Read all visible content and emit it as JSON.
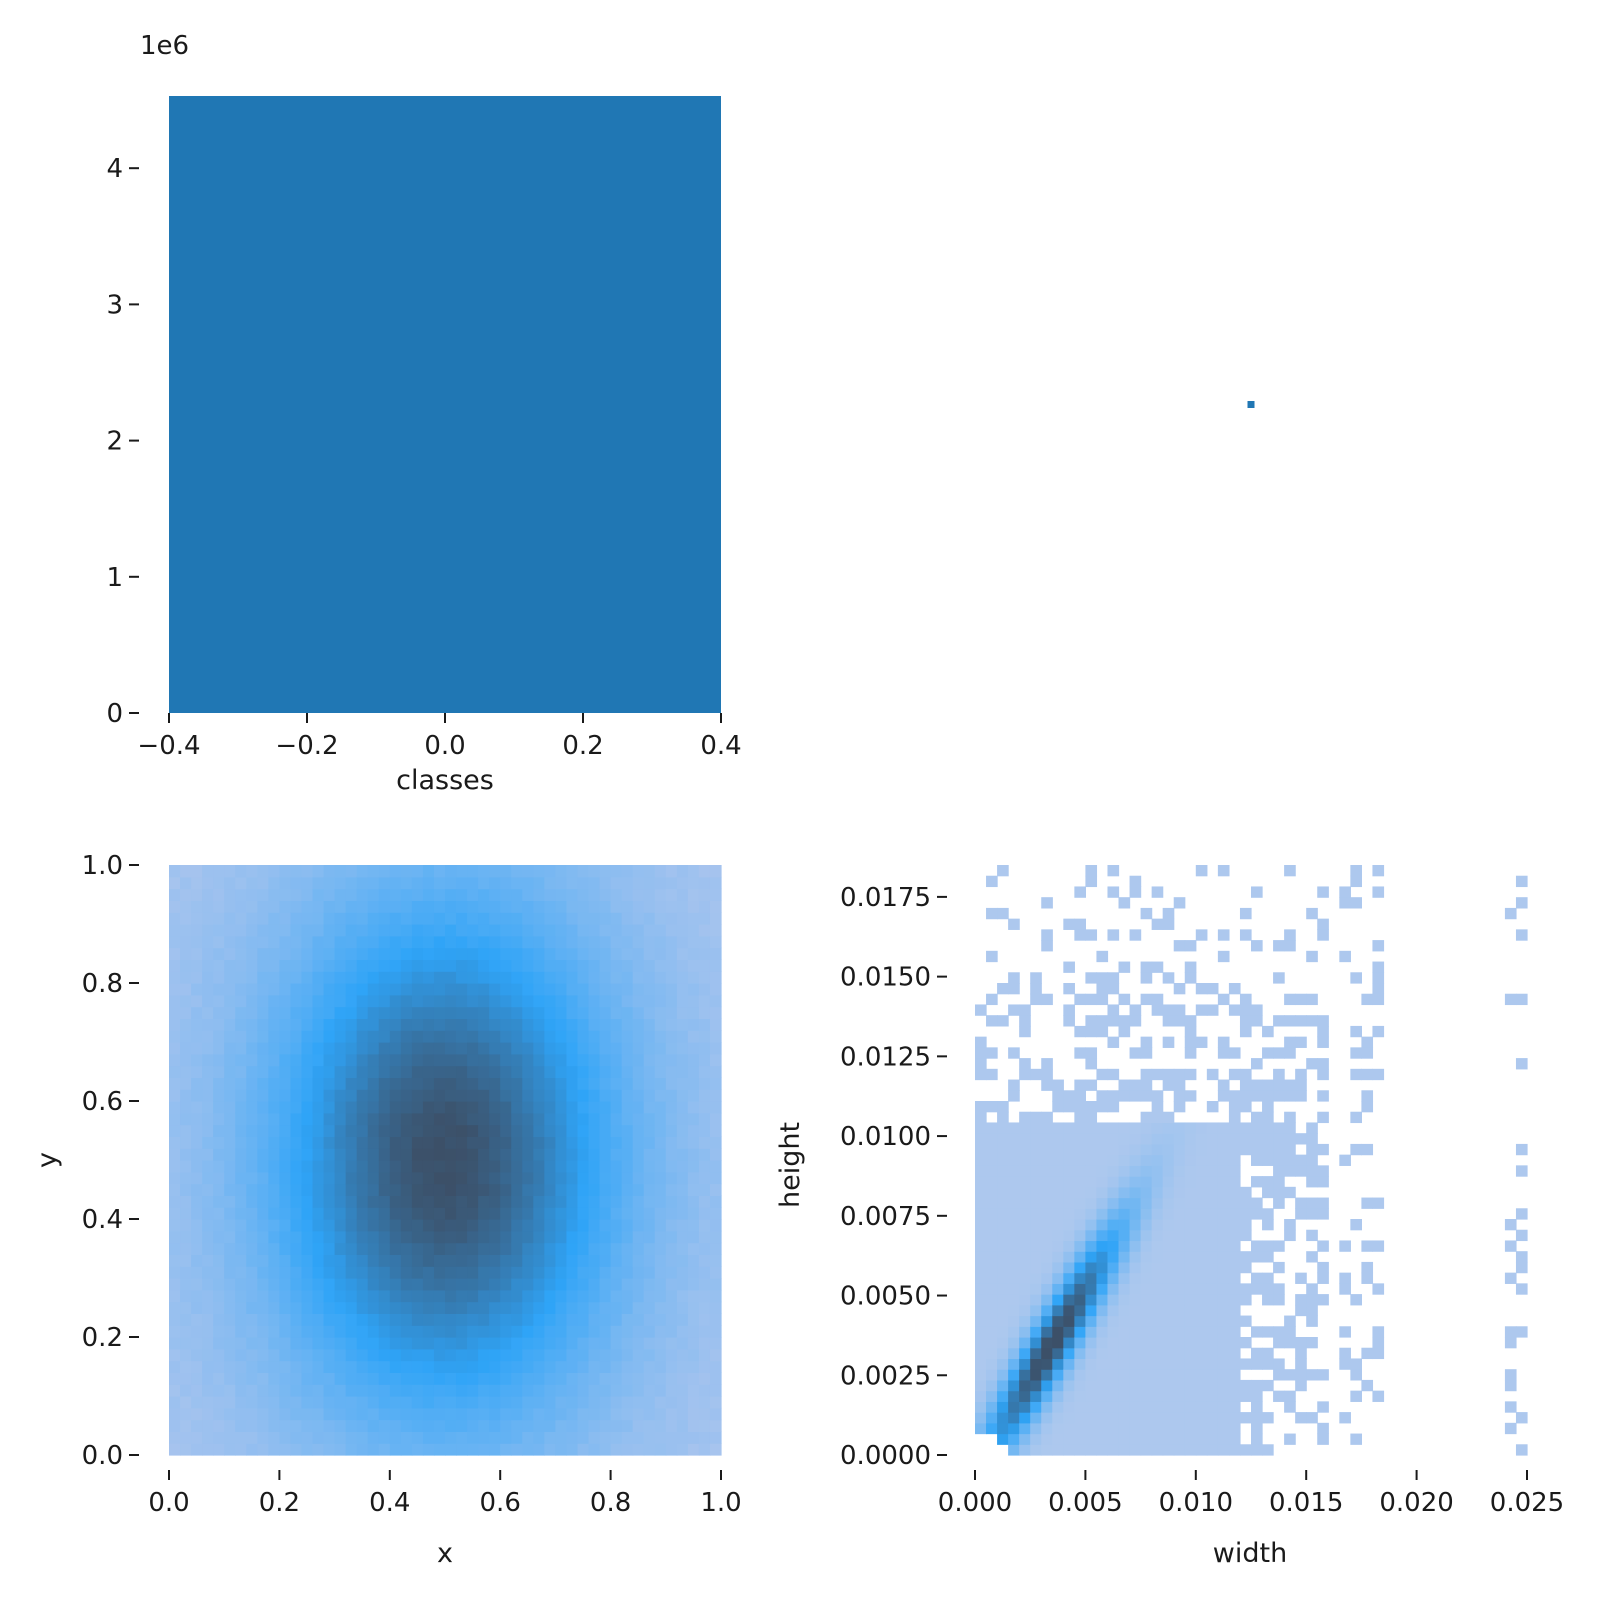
{
  "chart_data": [
    {
      "type": "bar",
      "panel": "top-left",
      "xlabel": "classes",
      "ylabel": "",
      "y_offset_label": "1e6",
      "xlim": [
        -0.4,
        0.4
      ],
      "ylim": [
        0,
        4.53
      ],
      "xticks": [
        "−0.4",
        "−0.2",
        "0.0",
        "0.2",
        "0.4"
      ],
      "xtick_values": [
        -0.4,
        -0.2,
        0.0,
        0.2,
        0.4
      ],
      "yticks": [
        "0",
        "1",
        "2",
        "3",
        "4"
      ],
      "ytick_values": [
        0,
        1,
        2,
        3,
        4
      ],
      "categories": [
        0
      ],
      "values": [
        4.53
      ],
      "bar_range": [
        -0.4,
        0.4
      ],
      "color": "#2077b4"
    },
    {
      "type": "scatter",
      "panel": "top-right",
      "xlabel": "",
      "ylabel": "",
      "points": [
        {
          "x": 0.5,
          "y": 0.5
        }
      ],
      "color": "#2077b4"
    },
    {
      "type": "heatmap",
      "panel": "bottom-left",
      "xlabel": "x",
      "ylabel": "y",
      "xlim": [
        0,
        1
      ],
      "ylim": [
        0,
        1
      ],
      "xticks": [
        "0.0",
        "0.2",
        "0.4",
        "0.6",
        "0.8",
        "1.0"
      ],
      "xtick_values": [
        0,
        0.2,
        0.4,
        0.6,
        0.8,
        1.0
      ],
      "yticks": [
        "0.0",
        "0.2",
        "0.4",
        "0.6",
        "0.8",
        "1.0"
      ],
      "ytick_values": [
        0,
        0.2,
        0.4,
        0.6,
        0.8,
        1.0
      ],
      "bins": 50,
      "peak": {
        "x": 0.5,
        "y": 0.5,
        "sx": 0.2,
        "sy": 0.28
      },
      "colormap": [
        "#a8c4ee",
        "#2fa4f7",
        "#3c5068"
      ]
    },
    {
      "type": "heatmap",
      "panel": "bottom-right",
      "xlabel": "width",
      "ylabel": "height",
      "xlim": [
        0,
        0.025
      ],
      "ylim": [
        0,
        0.0185
      ],
      "xticks": [
        "0.000",
        "0.005",
        "0.010",
        "0.015",
        "0.020",
        "0.025"
      ],
      "xtick_values": [
        0,
        0.005,
        0.01,
        0.015,
        0.02,
        0.025
      ],
      "yticks": [
        "0.0000",
        "0.0025",
        "0.0050",
        "0.0075",
        "0.0100",
        "0.0125",
        "0.0150",
        "0.0175"
      ],
      "ytick_values": [
        0,
        0.0025,
        0.005,
        0.0075,
        0.01,
        0.0125,
        0.015,
        0.0175
      ],
      "bins_x": 50,
      "bins_y": 55,
      "dense_region": {
        "width_max": 0.0121,
        "height_max": 0.0105
      },
      "peak": {
        "width": 0.0035,
        "height": 0.0035
      },
      "colormap": [
        "#adc8ee",
        "#2fa4f7",
        "#3c5068"
      ]
    }
  ]
}
